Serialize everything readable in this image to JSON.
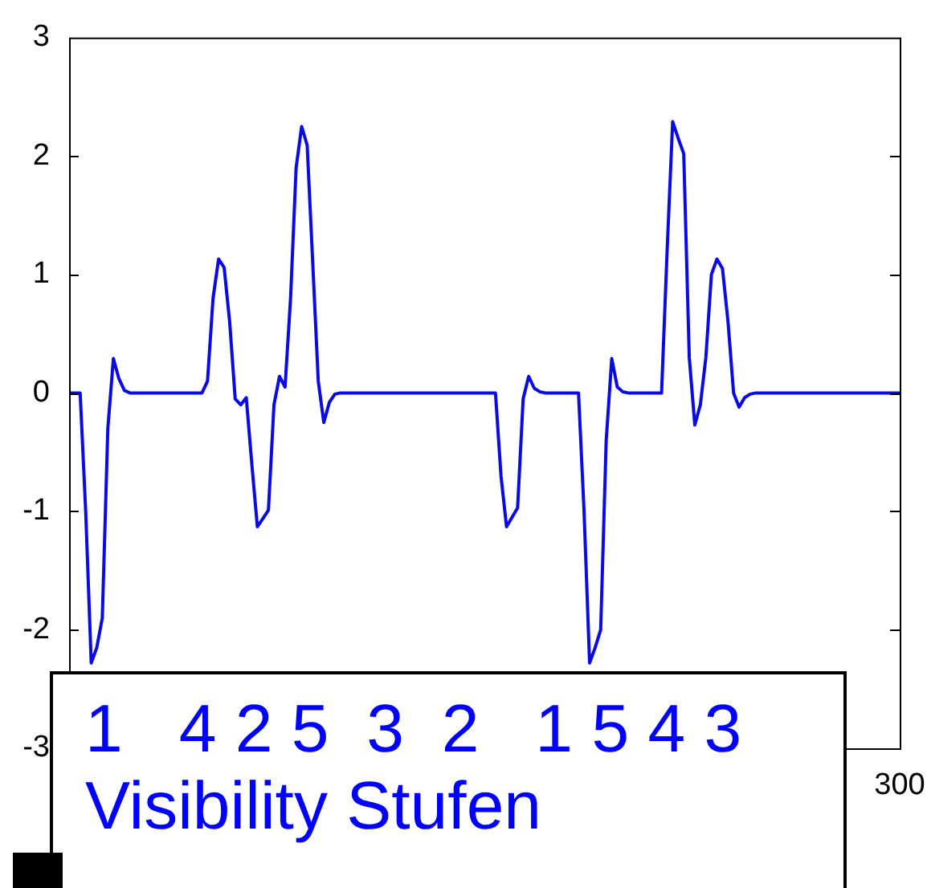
{
  "chart_data": {
    "type": "line",
    "ylim": [
      -3,
      3
    ],
    "categories": [
      null,
      null,
      null,
      null,
      null,
      null,
      null,
      null,
      null,
      null,
      null,
      null,
      null,
      null,
      null,
      null,
      null,
      null,
      null,
      null,
      null,
      null,
      null,
      null,
      null,
      null,
      null,
      null,
      null,
      null,
      null,
      null,
      null,
      null,
      null,
      null,
      null,
      null,
      null,
      null,
      null,
      null,
      null,
      null,
      null,
      null,
      null,
      null,
      null,
      null,
      null,
      null,
      null,
      null,
      null,
      null,
      null,
      null,
      null,
      null,
      null,
      null,
      null,
      null,
      null,
      null,
      null,
      null,
      null,
      null,
      null,
      null,
      null,
      null,
      null,
      null,
      null,
      null,
      null,
      null,
      null,
      null,
      null,
      null,
      null,
      null,
      null,
      null,
      null,
      null,
      null,
      null,
      null,
      null,
      null,
      null,
      null,
      null,
      null,
      null,
      null,
      null,
      null,
      null,
      null,
      null,
      null,
      null,
      null,
      null,
      null,
      null,
      null,
      null,
      null,
      null,
      null,
      null,
      null,
      null,
      null,
      null,
      null,
      null,
      null,
      null,
      null,
      null,
      null,
      null,
      null,
      null,
      null,
      null,
      null,
      null,
      null,
      null,
      null,
      null,
      null,
      null,
      null,
      null,
      null,
      null,
      null,
      null,
      null,
      null,
      null
    ],
    "yticks": [
      -3,
      -2,
      -1,
      0,
      1,
      2,
      3
    ],
    "tick_labels": "y",
    "marker": "none",
    "line_style": "solid",
    "annotations": [
      "1   4 2 5  3  2   1 5 4 3",
      "Visibility Stufen",
      "300"
    ],
    "series": [
      {
        "color": "#0a0ae6",
        "values": [
          0,
          0,
          0,
          -1.0,
          -2.28,
          -2.15,
          -1.9,
          -0.3,
          0.29,
          0.12,
          0.02,
          0,
          0,
          0,
          0,
          0,
          0,
          0,
          0,
          0,
          0,
          0,
          0,
          0,
          0,
          0.1,
          0.8,
          1.13,
          1.06,
          0.6,
          -0.05,
          -0.1,
          -0.04,
          -0.6,
          -1.13,
          -1.06,
          -0.99,
          -0.1,
          0.14,
          0.05,
          0.8,
          1.9,
          2.25,
          2.09,
          1.1,
          0.1,
          -0.25,
          -0.08,
          -0.01,
          0,
          0,
          0,
          0,
          0,
          0,
          0,
          0,
          0,
          0,
          0,
          0,
          0,
          0,
          0,
          0,
          0,
          0,
          0,
          0,
          0,
          0,
          0,
          0,
          0,
          0,
          0,
          0,
          0,
          -0.7,
          -1.13,
          -1.05,
          -0.97,
          -0.05,
          0.14,
          0.04,
          0.01,
          0,
          0,
          0,
          0,
          0,
          0,
          0,
          -1.0,
          -2.28,
          -2.15,
          -2.0,
          -0.4,
          0.29,
          0.05,
          0.01,
          0,
          0,
          0,
          0,
          0,
          0,
          0,
          1.2,
          2.29,
          2.15,
          2.02,
          0.3,
          -0.27,
          -0.1,
          0.3,
          1.0,
          1.13,
          1.05,
          0.6,
          0.0,
          -0.12,
          -0.04,
          -0.01,
          0,
          0,
          0,
          0,
          0,
          0,
          0,
          0,
          0,
          0,
          0,
          0,
          0,
          0,
          0,
          0,
          0,
          0,
          0,
          0,
          0,
          0,
          0,
          0,
          0,
          0,
          0
        ]
      }
    ]
  }
}
